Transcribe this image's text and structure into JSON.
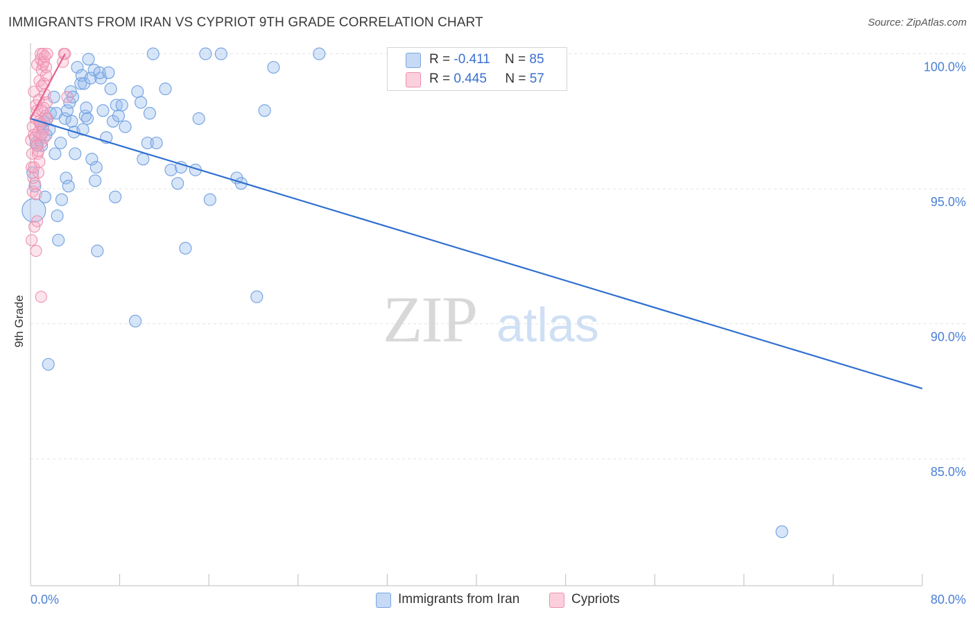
{
  "header": {
    "title": "IMMIGRANTS FROM IRAN VS CYPRIOT 9TH GRADE CORRELATION CHART",
    "source": "Source: ZipAtlas.com"
  },
  "watermark": {
    "zip": "ZIP",
    "atlas": "atlas"
  },
  "legend": {
    "series": [
      {
        "name": "Immigrants from Iran",
        "r_label": "R =",
        "r_value": "-0.411",
        "n_label": "N =",
        "n_value": "85",
        "color": "#6f9fe0"
      },
      {
        "name": "Cypriots",
        "r_label": "R =",
        "r_value": "0.445",
        "n_label": "N =",
        "n_value": "57",
        "color": "#ee8faf"
      }
    ]
  },
  "chart_data": {
    "type": "scatter",
    "title": "IMMIGRANTS FROM IRAN VS CYPRIOT 9TH GRADE CORRELATION CHART",
    "xlabel": "",
    "ylabel": "9th Grade",
    "xlim": [
      0,
      80
    ],
    "ylim": [
      80.3,
      100.4
    ],
    "x_tick_labels": [
      "0.0%",
      "80.0%"
    ],
    "y_ticks": [
      100,
      95,
      90,
      85
    ],
    "y_tick_labels": [
      "100.0%",
      "95.0%",
      "90.0%",
      "85.0%"
    ],
    "grid": true,
    "series": [
      {
        "name": "Immigrants from Iran",
        "color": "#6f9fe0",
        "trend": {
          "x": [
            0,
            80
          ],
          "y": [
            97.6,
            87.6
          ]
        },
        "points": [
          [
            0.3,
            94.2
          ],
          [
            0.5,
            96.7
          ],
          [
            0.8,
            96.9
          ],
          [
            1.0,
            96.6
          ],
          [
            1.1,
            97.3
          ],
          [
            1.2,
            97.5
          ],
          [
            1.3,
            94.7
          ],
          [
            1.4,
            97.0
          ],
          [
            1.5,
            97.6
          ],
          [
            1.7,
            97.2
          ],
          [
            1.8,
            97.8
          ],
          [
            2.1,
            98.4
          ],
          [
            2.2,
            96.3
          ],
          [
            2.5,
            93.1
          ],
          [
            2.4,
            94.0
          ],
          [
            2.7,
            96.7
          ],
          [
            2.8,
            94.6
          ],
          [
            3.1,
            97.6
          ],
          [
            3.2,
            95.4
          ],
          [
            3.3,
            97.9
          ],
          [
            3.4,
            95.1
          ],
          [
            3.5,
            98.2
          ],
          [
            3.6,
            98.6
          ],
          [
            3.7,
            97.5
          ],
          [
            3.8,
            98.4
          ],
          [
            3.9,
            97.1
          ],
          [
            4.0,
            96.3
          ],
          [
            4.2,
            99.5
          ],
          [
            4.5,
            98.9
          ],
          [
            4.6,
            99.2
          ],
          [
            4.7,
            97.2
          ],
          [
            4.8,
            98.9
          ],
          [
            4.9,
            97.7
          ],
          [
            5.0,
            98.0
          ],
          [
            5.1,
            97.6
          ],
          [
            5.2,
            99.8
          ],
          [
            5.4,
            99.1
          ],
          [
            5.5,
            96.1
          ],
          [
            5.7,
            99.4
          ],
          [
            5.8,
            95.3
          ],
          [
            5.9,
            95.8
          ],
          [
            6.0,
            92.7
          ],
          [
            6.3,
            99.1
          ],
          [
            6.2,
            99.3
          ],
          [
            6.5,
            97.9
          ],
          [
            6.8,
            96.9
          ],
          [
            7.0,
            99.3
          ],
          [
            7.2,
            98.7
          ],
          [
            7.4,
            97.5
          ],
          [
            7.6,
            94.7
          ],
          [
            7.7,
            98.1
          ],
          [
            7.9,
            97.7
          ],
          [
            8.2,
            98.1
          ],
          [
            8.5,
            97.3
          ],
          [
            9.4,
            90.1
          ],
          [
            9.6,
            98.6
          ],
          [
            9.9,
            98.2
          ],
          [
            10.1,
            96.1
          ],
          [
            10.5,
            96.7
          ],
          [
            10.7,
            97.8
          ],
          [
            11.0,
            100.0
          ],
          [
            11.3,
            96.7
          ],
          [
            12.1,
            98.7
          ],
          [
            12.6,
            95.7
          ],
          [
            13.2,
            95.2
          ],
          [
            13.5,
            95.8
          ],
          [
            13.9,
            92.8
          ],
          [
            14.8,
            95.7
          ],
          [
            15.1,
            97.6
          ],
          [
            16.1,
            94.6
          ],
          [
            15.7,
            100.0
          ],
          [
            17.1,
            100.0
          ],
          [
            18.5,
            95.4
          ],
          [
            18.9,
            95.2
          ],
          [
            20.3,
            91.0
          ],
          [
            21.0,
            97.9
          ],
          [
            21.8,
            99.5
          ],
          [
            25.9,
            100.0
          ],
          [
            0.2,
            95.6
          ],
          [
            0.6,
            96.6
          ],
          [
            0.9,
            97.4
          ],
          [
            1.6,
            88.5
          ],
          [
            2.3,
            97.8
          ],
          [
            67.4,
            82.3
          ],
          [
            0.4,
            95.1
          ]
        ]
      },
      {
        "name": "Cypriots",
        "color": "#ee8faf",
        "trend": {
          "x": [
            0,
            3.1
          ],
          "y": [
            97.6,
            100.0
          ]
        },
        "points": [
          [
            0.05,
            96.8
          ],
          [
            0.1,
            95.8
          ],
          [
            0.1,
            93.1
          ],
          [
            0.15,
            96.3
          ],
          [
            0.2,
            97.3
          ],
          [
            0.2,
            94.9
          ],
          [
            0.25,
            95.4
          ],
          [
            0.3,
            97.0
          ],
          [
            0.3,
            98.6
          ],
          [
            0.35,
            93.6
          ],
          [
            0.4,
            96.9
          ],
          [
            0.4,
            95.2
          ],
          [
            0.45,
            97.6
          ],
          [
            0.5,
            92.7
          ],
          [
            0.5,
            98.1
          ],
          [
            0.55,
            96.6
          ],
          [
            0.6,
            97.9
          ],
          [
            0.6,
            99.6
          ],
          [
            0.65,
            96.3
          ],
          [
            0.7,
            95.6
          ],
          [
            0.7,
            97.1
          ],
          [
            0.75,
            98.3
          ],
          [
            0.8,
            96.0
          ],
          [
            0.8,
            99.0
          ],
          [
            0.85,
            97.4
          ],
          [
            0.9,
            99.8
          ],
          [
            0.9,
            100.0
          ],
          [
            0.95,
            96.7
          ],
          [
            1.0,
            98.8
          ],
          [
            1.0,
            99.4
          ],
          [
            1.05,
            97.9
          ],
          [
            1.1,
            99.6
          ],
          [
            1.1,
            100.0
          ],
          [
            1.15,
            97.2
          ],
          [
            1.2,
            98.0
          ],
          [
            1.2,
            99.7
          ],
          [
            1.25,
            96.9
          ],
          [
            1.3,
            98.5
          ],
          [
            1.3,
            99.9
          ],
          [
            1.35,
            97.7
          ],
          [
            1.4,
            99.5
          ],
          [
            1.45,
            98.2
          ],
          [
            1.5,
            97.6
          ],
          [
            1.5,
            100.0
          ],
          [
            0.95,
            91.0
          ],
          [
            2.9,
            99.7
          ],
          [
            3.0,
            100.0
          ],
          [
            3.1,
            100.0
          ],
          [
            3.3,
            98.4
          ],
          [
            0.3,
            95.8
          ],
          [
            0.5,
            94.8
          ],
          [
            0.6,
            93.8
          ],
          [
            0.7,
            96.4
          ],
          [
            0.8,
            97.5
          ],
          [
            1.0,
            97.0
          ],
          [
            1.2,
            98.9
          ],
          [
            1.4,
            99.2
          ]
        ]
      }
    ]
  }
}
